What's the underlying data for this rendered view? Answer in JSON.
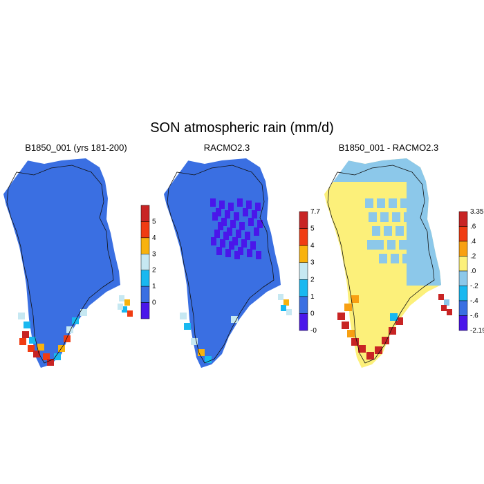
{
  "title": "SON atmospheric rain (mm/d)",
  "colors": {
    "land": "#3a6fe2",
    "lowest": "#4a16ea",
    "band_1_2": "#19b8f0",
    "band_2_3": "#c6e8f2",
    "band_3_4": "#f8b20e",
    "band_4_5": "#f03c12",
    "band_5_up": "#c82424",
    "diff_yellow": "#fcf07a",
    "diff_lightblue": "#8cc8ea",
    "diff_orange": "#f8a012",
    "diff_red": "#c82424",
    "coast": "#111111"
  },
  "panels": [
    {
      "title": "B1850_001 (yrs 181-200)",
      "colorbar": {
        "labels": [
          "5",
          "4",
          "3",
          "2",
          "1",
          "0"
        ],
        "colors": [
          "#c82424",
          "#f03c12",
          "#f8b20e",
          "#c6e8f2",
          "#19b8f0",
          "#3a6fe2",
          "#4a16ea"
        ]
      }
    },
    {
      "title": "RACMO2.3",
      "colorbar": {
        "labels": [
          "7.7",
          "5",
          "4",
          "3",
          "2",
          "1",
          "0",
          "-0"
        ],
        "colors": [
          "#c82424",
          "#f03c12",
          "#f8b20e",
          "#c6e8f2",
          "#19b8f0",
          "#3a6fe2",
          "#4a16ea"
        ]
      }
    },
    {
      "title": "B1850_001 - RACMO2.3",
      "colorbar": {
        "labels": [
          "3.35",
          ".6",
          ".4",
          ".2",
          ".0",
          "-.2",
          "-.4",
          "-.6",
          "-2.19"
        ],
        "colors": [
          "#c82424",
          "#f03c12",
          "#f8a012",
          "#fcf07a",
          "#8cc8ea",
          "#19b8f0",
          "#3a6fe2",
          "#4a16ea"
        ]
      }
    }
  ]
}
